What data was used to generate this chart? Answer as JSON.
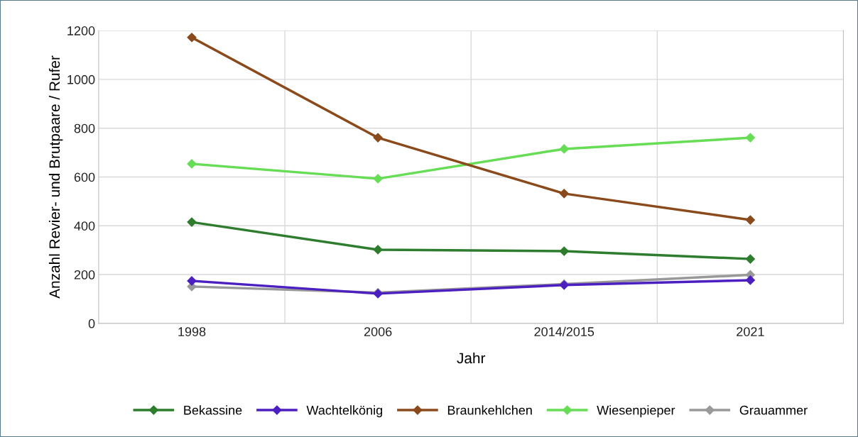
{
  "chart_data": {
    "type": "line",
    "xlabel": "Jahr",
    "ylabel": "Anzahl Revier- und Brutpaare / Rufer",
    "categories": [
      "1998",
      "2006",
      "2014/2015",
      "2021"
    ],
    "series": [
      {
        "name": "Bekassine",
        "color": "#2e7d2e",
        "values": [
          415,
          302,
          296,
          264
        ]
      },
      {
        "name": "Wachtelkönig",
        "color": "#4b1fc0",
        "values": [
          174,
          122,
          157,
          177
        ]
      },
      {
        "name": "Braunkehlchen",
        "color": "#8b4a1c",
        "values": [
          1172,
          761,
          532,
          424
        ]
      },
      {
        "name": "Wiesenpieper",
        "color": "#66dd55",
        "values": [
          654,
          593,
          715,
          761
        ]
      },
      {
        "name": "Grauammer",
        "color": "#999999",
        "values": [
          151,
          126,
          161,
          199
        ]
      }
    ],
    "ylim": [
      0,
      1200
    ],
    "yticks": [
      0,
      200,
      400,
      600,
      800,
      1000,
      1200
    ],
    "grid": true,
    "legend": "bottom",
    "marker": "diamond",
    "line_style": "solid"
  }
}
